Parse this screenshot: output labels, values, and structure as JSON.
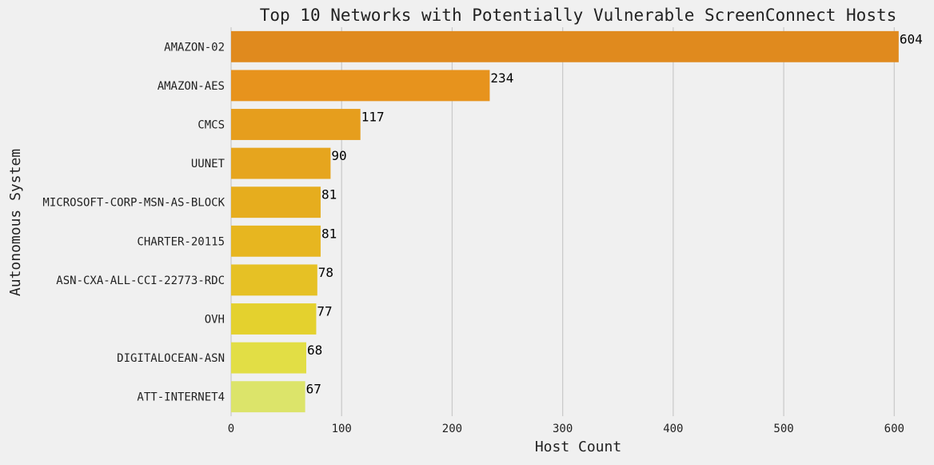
{
  "chart_data": {
    "type": "bar",
    "orientation": "horizontal",
    "title": "Top 10 Networks with Potentially Vulnerable ScreenConnect Hosts",
    "xlabel": "Host Count",
    "ylabel": "Autonomous System",
    "categories": [
      "AMAZON-02",
      "AMAZON-AES",
      "CMCS",
      "UUNET",
      "MICROSOFT-CORP-MSN-AS-BLOCK",
      "CHARTER-20115",
      "ASN-CXA-ALL-CCI-22773-RDC",
      "OVH",
      "DIGITALOCEAN-ASN",
      "ATT-INTERNET4"
    ],
    "values": [
      604,
      234,
      117,
      90,
      81,
      81,
      78,
      77,
      68,
      67
    ],
    "data_labels": [
      "604",
      "234",
      "117",
      "90",
      "81",
      "81",
      "78",
      "77",
      "68",
      "67"
    ],
    "xticks": [
      "0",
      "100",
      "200",
      "300",
      "400",
      "500",
      "600"
    ],
    "xtick_values": [
      0,
      100,
      200,
      300,
      400,
      500,
      600
    ],
    "xlim": [
      0,
      628
    ],
    "grid": "vertical",
    "colors": [
      "#e08a1e",
      "#e7931d",
      "#e69e1d",
      "#e6a51e",
      "#e6ad1e",
      "#e7b620",
      "#e6c125",
      "#e4d12e",
      "#e2de45",
      "#dce46a"
    ]
  },
  "style": {
    "background": "#f0f0f0",
    "grid_color": "#cbcbcb",
    "text_color": "#222222"
  }
}
